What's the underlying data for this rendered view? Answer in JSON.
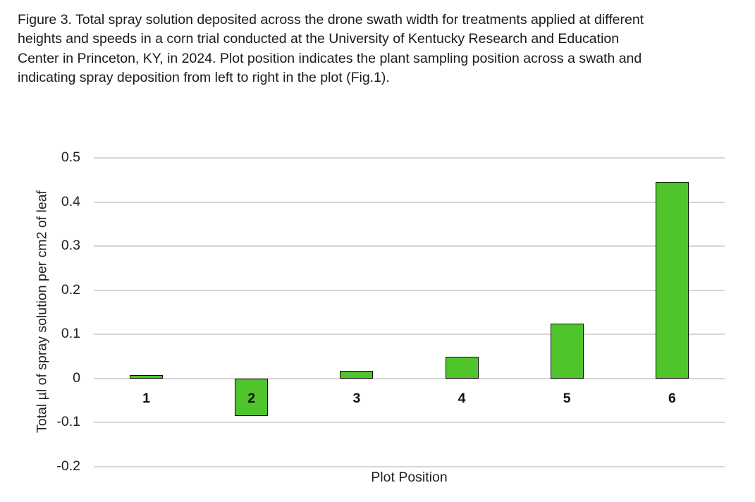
{
  "caption": {
    "lines": [
      "Figure 3. Total spray solution deposited across the drone swath width for treatments applied at different",
      "heights and speeds in a corn trial conducted at the University of Kentucky Research and Education",
      "Center in Princeton, KY, in 2024. Plot position indicates the plant sampling position across a swath and",
      "indicating spray deposition from left to right in the plot (Fig.1)."
    ]
  },
  "chart_data": {
    "type": "bar",
    "categories": [
      "1",
      "2",
      "3",
      "4",
      "5",
      "6"
    ],
    "values": [
      0.007,
      -0.085,
      0.018,
      0.05,
      0.125,
      0.445
    ],
    "title": "",
    "xlabel": "Plot Position",
    "ylabel": "Total µl of spray solution per cm2 of leaf",
    "ylim": [
      -0.2,
      0.5
    ],
    "yticks": [
      "0.5",
      "0.4",
      "0.3",
      "0.2",
      "0.1",
      "0",
      "-0.1",
      "-0.2"
    ],
    "grid": true,
    "legend": "none",
    "bar_color": "#50C42B",
    "bar_border_color": "#0a0a0a",
    "gridline_color": "#d6d6d6"
  }
}
